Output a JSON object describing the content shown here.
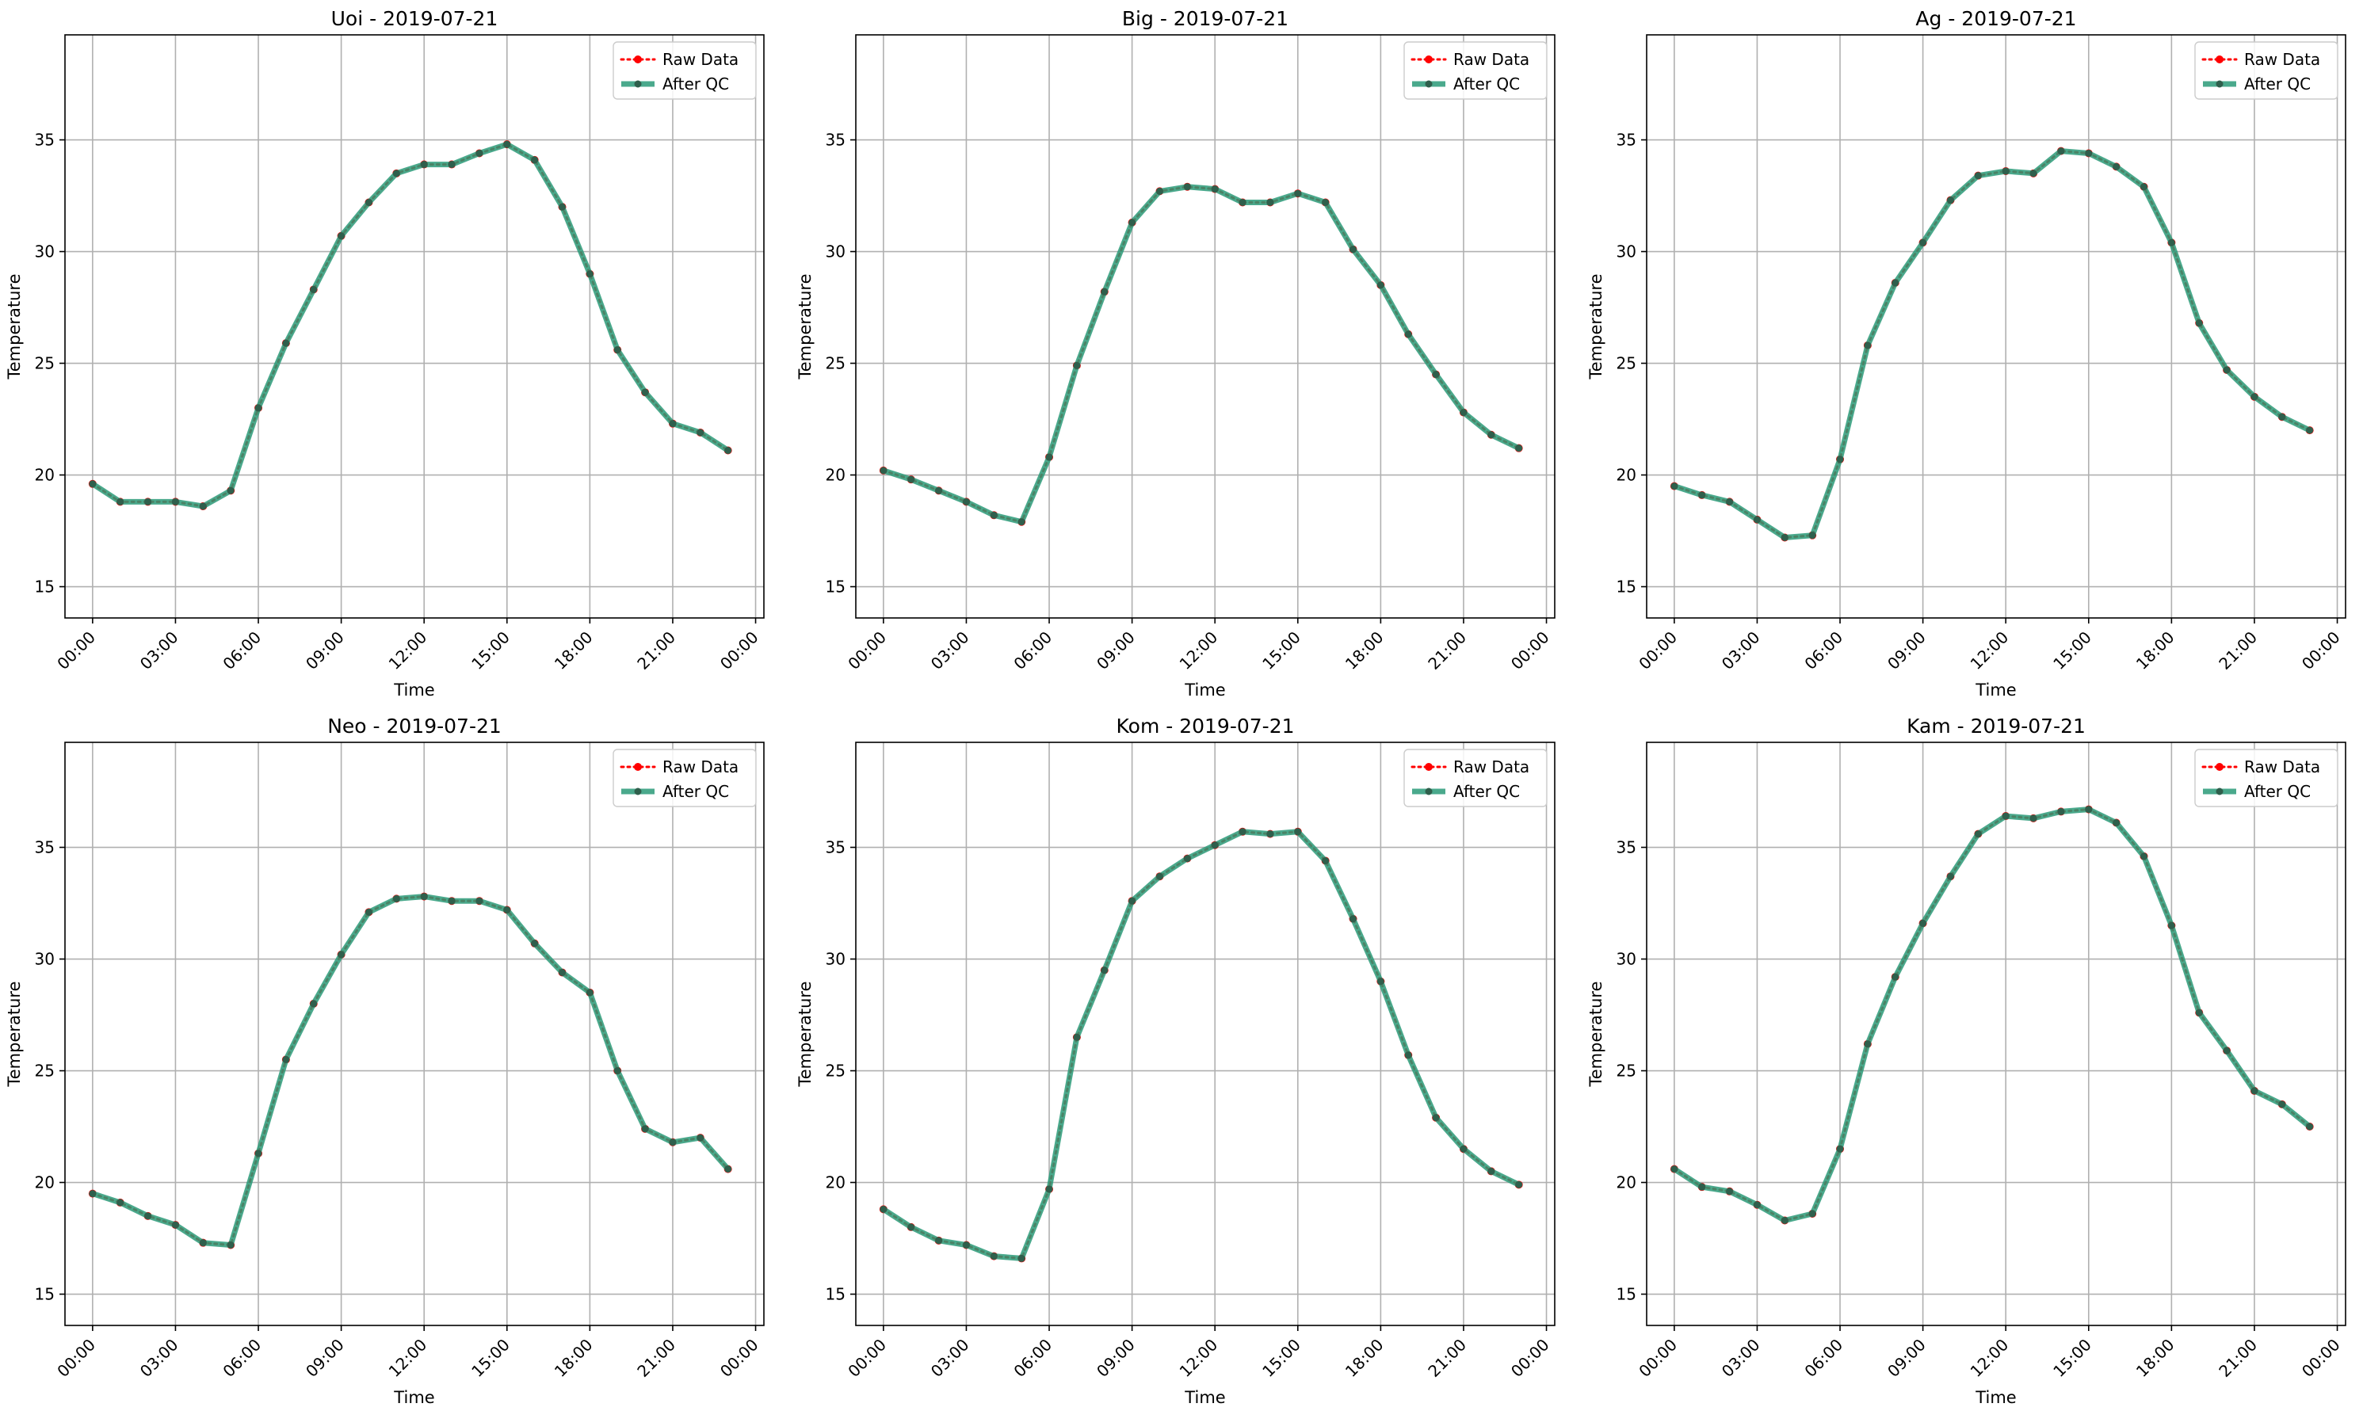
{
  "chart_data": [
    {
      "type": "line",
      "title": "Uoi - 2019-07-21",
      "xlabel": "Time",
      "ylabel": "Temperature",
      "x": [
        "00:00",
        "01:00",
        "02:00",
        "03:00",
        "04:00",
        "05:00",
        "06:00",
        "07:00",
        "08:00",
        "09:00",
        "10:00",
        "11:00",
        "12:00",
        "13:00",
        "14:00",
        "15:00",
        "16:00",
        "17:00",
        "18:00",
        "19:00",
        "20:00",
        "21:00",
        "22:00",
        "23:00"
      ],
      "xticks": [
        "00:00",
        "03:00",
        "06:00",
        "09:00",
        "12:00",
        "15:00",
        "18:00",
        "21:00",
        "00:00"
      ],
      "xlim": [
        -1.0,
        24.3
      ],
      "yticks": [
        15,
        20,
        25,
        30,
        35
      ],
      "ylim": [
        13.6,
        39.7
      ],
      "grid": true,
      "legend": "top-right",
      "series": [
        {
          "name": "Raw Data",
          "color": "#ff0000",
          "style": "dotted",
          "values": [
            19.6,
            18.8,
            18.8,
            18.8,
            18.6,
            19.3,
            23.0,
            25.9,
            28.3,
            30.7,
            32.2,
            33.5,
            33.9,
            33.9,
            34.4,
            34.8,
            34.1,
            32.0,
            29.0,
            25.6,
            23.7,
            22.3,
            21.9,
            21.1
          ]
        },
        {
          "name": "After QC",
          "color": "#2a9a78",
          "style": "solid",
          "values": [
            19.6,
            18.8,
            18.8,
            18.8,
            18.6,
            19.3,
            23.0,
            25.9,
            28.3,
            30.7,
            32.2,
            33.5,
            33.9,
            33.9,
            34.4,
            34.8,
            34.1,
            32.0,
            29.0,
            25.6,
            23.7,
            22.3,
            21.9,
            21.1
          ]
        }
      ]
    },
    {
      "type": "line",
      "title": "Big - 2019-07-21",
      "xlabel": "Time",
      "ylabel": "Temperature",
      "x": [
        "00:00",
        "01:00",
        "02:00",
        "03:00",
        "04:00",
        "05:00",
        "06:00",
        "07:00",
        "08:00",
        "09:00",
        "10:00",
        "11:00",
        "12:00",
        "13:00",
        "14:00",
        "15:00",
        "16:00",
        "17:00",
        "18:00",
        "19:00",
        "20:00",
        "21:00",
        "22:00",
        "23:00"
      ],
      "xticks": [
        "00:00",
        "03:00",
        "06:00",
        "09:00",
        "12:00",
        "15:00",
        "18:00",
        "21:00",
        "00:00"
      ],
      "xlim": [
        -1.0,
        24.3
      ],
      "yticks": [
        15,
        20,
        25,
        30,
        35
      ],
      "ylim": [
        13.6,
        39.7
      ],
      "grid": true,
      "legend": "top-right",
      "series": [
        {
          "name": "Raw Data",
          "color": "#ff0000",
          "style": "dotted",
          "values": [
            20.2,
            19.8,
            19.3,
            18.8,
            18.2,
            17.9,
            20.8,
            24.9,
            28.2,
            31.3,
            32.7,
            32.9,
            32.8,
            32.2,
            32.2,
            32.6,
            32.2,
            30.1,
            28.5,
            26.3,
            24.5,
            22.8,
            21.8,
            21.2
          ]
        },
        {
          "name": "After QC",
          "color": "#2a9a78",
          "style": "solid",
          "values": [
            20.2,
            19.8,
            19.3,
            18.8,
            18.2,
            17.9,
            20.8,
            24.9,
            28.2,
            31.3,
            32.7,
            32.9,
            32.8,
            32.2,
            32.2,
            32.6,
            32.2,
            30.1,
            28.5,
            26.3,
            24.5,
            22.8,
            21.8,
            21.2
          ]
        }
      ]
    },
    {
      "type": "line",
      "title": "Ag - 2019-07-21",
      "xlabel": "Time",
      "ylabel": "Temperature",
      "x": [
        "00:00",
        "01:00",
        "02:00",
        "03:00",
        "04:00",
        "05:00",
        "06:00",
        "07:00",
        "08:00",
        "09:00",
        "10:00",
        "11:00",
        "12:00",
        "13:00",
        "14:00",
        "15:00",
        "16:00",
        "17:00",
        "18:00",
        "19:00",
        "20:00",
        "21:00",
        "22:00",
        "23:00"
      ],
      "xticks": [
        "00:00",
        "03:00",
        "06:00",
        "09:00",
        "12:00",
        "15:00",
        "18:00",
        "21:00",
        "00:00"
      ],
      "xlim": [
        -1.0,
        24.3
      ],
      "yticks": [
        15,
        20,
        25,
        30,
        35
      ],
      "ylim": [
        13.6,
        39.7
      ],
      "grid": true,
      "legend": "top-right",
      "series": [
        {
          "name": "Raw Data",
          "color": "#ff0000",
          "style": "dotted",
          "values": [
            19.5,
            19.1,
            18.8,
            18.0,
            17.2,
            17.3,
            20.7,
            25.8,
            28.6,
            30.4,
            32.3,
            33.4,
            33.6,
            33.5,
            34.5,
            34.4,
            33.8,
            32.9,
            30.4,
            26.8,
            24.7,
            23.5,
            22.6,
            22.0
          ]
        },
        {
          "name": "After QC",
          "color": "#2a9a78",
          "style": "solid",
          "values": [
            19.5,
            19.1,
            18.8,
            18.0,
            17.2,
            17.3,
            20.7,
            25.8,
            28.6,
            30.4,
            32.3,
            33.4,
            33.6,
            33.5,
            34.5,
            34.4,
            33.8,
            32.9,
            30.4,
            26.8,
            24.7,
            23.5,
            22.6,
            22.0
          ]
        }
      ]
    },
    {
      "type": "line",
      "title": "Neo - 2019-07-21",
      "xlabel": "Time",
      "ylabel": "Temperature",
      "x": [
        "00:00",
        "01:00",
        "02:00",
        "03:00",
        "04:00",
        "05:00",
        "06:00",
        "07:00",
        "08:00",
        "09:00",
        "10:00",
        "11:00",
        "12:00",
        "13:00",
        "14:00",
        "15:00",
        "16:00",
        "17:00",
        "18:00",
        "19:00",
        "20:00",
        "21:00",
        "22:00",
        "23:00"
      ],
      "xticks": [
        "00:00",
        "03:00",
        "06:00",
        "09:00",
        "12:00",
        "15:00",
        "18:00",
        "21:00",
        "00:00"
      ],
      "xlim": [
        -1.0,
        24.3
      ],
      "yticks": [
        15,
        20,
        25,
        30,
        35
      ],
      "ylim": [
        13.6,
        39.7
      ],
      "grid": true,
      "legend": "top-right",
      "series": [
        {
          "name": "Raw Data",
          "color": "#ff0000",
          "style": "dotted",
          "values": [
            19.5,
            19.1,
            18.5,
            18.1,
            17.3,
            17.2,
            21.3,
            25.5,
            28.0,
            30.2,
            32.1,
            32.7,
            32.8,
            32.6,
            32.6,
            32.2,
            30.7,
            29.4,
            28.5,
            25.0,
            22.4,
            21.8,
            22.0,
            20.6
          ]
        },
        {
          "name": "After QC",
          "color": "#2a9a78",
          "style": "solid",
          "values": [
            19.5,
            19.1,
            18.5,
            18.1,
            17.3,
            17.2,
            21.3,
            25.5,
            28.0,
            30.2,
            32.1,
            32.7,
            32.8,
            32.6,
            32.6,
            32.2,
            30.7,
            29.4,
            28.5,
            25.0,
            22.4,
            21.8,
            22.0,
            20.6
          ]
        }
      ]
    },
    {
      "type": "line",
      "title": "Kom - 2019-07-21",
      "xlabel": "Time",
      "ylabel": "Temperature",
      "x": [
        "00:00",
        "01:00",
        "02:00",
        "03:00",
        "04:00",
        "05:00",
        "06:00",
        "07:00",
        "08:00",
        "09:00",
        "10:00",
        "11:00",
        "12:00",
        "13:00",
        "14:00",
        "15:00",
        "16:00",
        "17:00",
        "18:00",
        "19:00",
        "20:00",
        "21:00",
        "22:00",
        "23:00"
      ],
      "xticks": [
        "00:00",
        "03:00",
        "06:00",
        "09:00",
        "12:00",
        "15:00",
        "18:00",
        "21:00",
        "00:00"
      ],
      "xlim": [
        -1.0,
        24.3
      ],
      "yticks": [
        15,
        20,
        25,
        30,
        35
      ],
      "ylim": [
        13.6,
        39.7
      ],
      "grid": true,
      "legend": "top-right",
      "series": [
        {
          "name": "Raw Data",
          "color": "#ff0000",
          "style": "dotted",
          "values": [
            18.8,
            18.0,
            17.4,
            17.2,
            16.7,
            16.6,
            19.7,
            26.5,
            29.5,
            32.6,
            33.7,
            34.5,
            35.1,
            35.7,
            35.6,
            35.7,
            34.4,
            31.8,
            29.0,
            25.7,
            22.9,
            21.5,
            20.5,
            19.9
          ]
        },
        {
          "name": "After QC",
          "color": "#2a9a78",
          "style": "solid",
          "values": [
            18.8,
            18.0,
            17.4,
            17.2,
            16.7,
            16.6,
            19.7,
            26.5,
            29.5,
            32.6,
            33.7,
            34.5,
            35.1,
            35.7,
            35.6,
            35.7,
            34.4,
            31.8,
            29.0,
            25.7,
            22.9,
            21.5,
            20.5,
            19.9
          ]
        }
      ]
    },
    {
      "type": "line",
      "title": "Kam - 2019-07-21",
      "xlabel": "Time",
      "ylabel": "Temperature",
      "x": [
        "00:00",
        "01:00",
        "02:00",
        "03:00",
        "04:00",
        "05:00",
        "06:00",
        "07:00",
        "08:00",
        "09:00",
        "10:00",
        "11:00",
        "12:00",
        "13:00",
        "14:00",
        "15:00",
        "16:00",
        "17:00",
        "18:00",
        "19:00",
        "20:00",
        "21:00",
        "22:00",
        "23:00"
      ],
      "xticks": [
        "00:00",
        "03:00",
        "06:00",
        "09:00",
        "12:00",
        "15:00",
        "18:00",
        "21:00",
        "00:00"
      ],
      "xlim": [
        -1.0,
        24.3
      ],
      "yticks": [
        15,
        20,
        25,
        30,
        35
      ],
      "ylim": [
        13.6,
        39.7
      ],
      "grid": true,
      "legend": "top-right",
      "series": [
        {
          "name": "Raw Data",
          "color": "#ff0000",
          "style": "dotted",
          "values": [
            20.6,
            19.8,
            19.6,
            19.0,
            18.3,
            18.6,
            21.5,
            26.2,
            29.2,
            31.6,
            33.7,
            35.6,
            36.4,
            36.3,
            36.6,
            36.7,
            36.1,
            34.6,
            31.5,
            27.6,
            25.9,
            24.1,
            23.5,
            22.5
          ]
        },
        {
          "name": "After QC",
          "color": "#2a9a78",
          "style": "solid",
          "values": [
            20.6,
            19.8,
            19.6,
            19.0,
            18.3,
            18.6,
            21.5,
            26.2,
            29.2,
            31.6,
            33.7,
            35.6,
            36.4,
            36.3,
            36.6,
            36.7,
            36.1,
            34.6,
            31.5,
            27.6,
            25.9,
            24.1,
            23.5,
            22.5
          ]
        }
      ]
    }
  ]
}
